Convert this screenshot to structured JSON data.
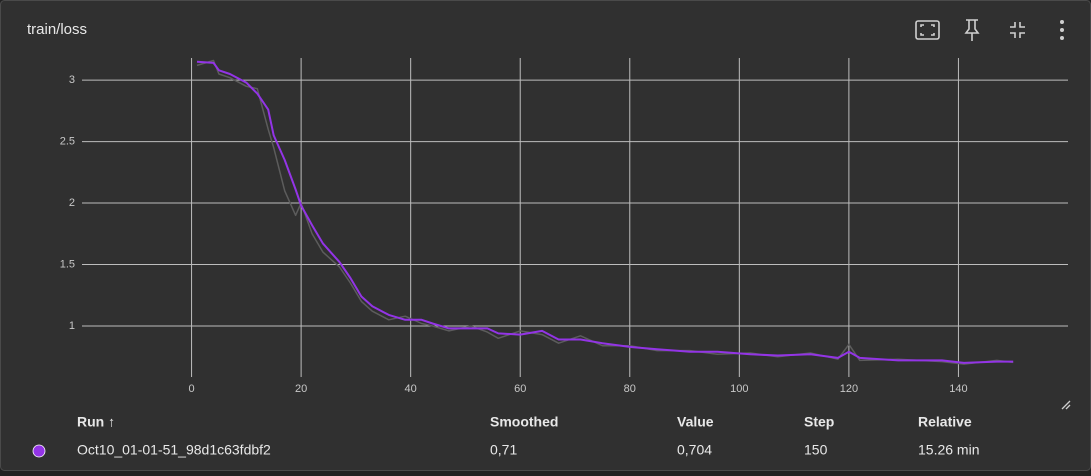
{
  "card_title": "train/loss",
  "chart_data": {
    "type": "line",
    "x": [
      1,
      4,
      5,
      7,
      10,
      12,
      14,
      15,
      17,
      19,
      20,
      22,
      24,
      27,
      29,
      31,
      33,
      36,
      39,
      42,
      44,
      47,
      51,
      54,
      56,
      60,
      64,
      67,
      71,
      75,
      80,
      85,
      91,
      96,
      102,
      107,
      113,
      118,
      120,
      122,
      129,
      137,
      141,
      147,
      150
    ],
    "series": [
      {
        "color": "#5c5c5c",
        "values": [
          3.12,
          3.16,
          3.05,
          3.02,
          2.95,
          2.93,
          2.6,
          2.45,
          2.1,
          1.9,
          2.0,
          1.75,
          1.6,
          1.48,
          1.35,
          1.2,
          1.12,
          1.05,
          1.08,
          1.02,
          1.0,
          0.96,
          1.0,
          0.95,
          0.9,
          0.96,
          0.93,
          0.86,
          0.92,
          0.84,
          0.84,
          0.8,
          0.8,
          0.77,
          0.78,
          0.75,
          0.78,
          0.73,
          0.85,
          0.72,
          0.73,
          0.71,
          0.69,
          0.72,
          0.704
        ]
      },
      {
        "color": "#9334e6",
        "values": [
          3.15,
          3.14,
          3.08,
          3.05,
          2.98,
          2.89,
          2.76,
          2.55,
          2.35,
          2.11,
          1.98,
          1.82,
          1.67,
          1.52,
          1.39,
          1.24,
          1.16,
          1.09,
          1.05,
          1.05,
          1.02,
          0.98,
          0.98,
          0.98,
          0.94,
          0.93,
          0.96,
          0.89,
          0.89,
          0.86,
          0.83,
          0.81,
          0.79,
          0.79,
          0.77,
          0.76,
          0.77,
          0.74,
          0.79,
          0.74,
          0.72,
          0.72,
          0.7,
          0.71,
          0.71
        ]
      }
    ],
    "xlim": [
      -20,
      160
    ],
    "xticks": [
      0,
      20,
      40,
      60,
      80,
      100,
      120,
      140
    ],
    "ylim": [
      0.585,
      3.18
    ],
    "yticks": [
      1,
      1.5,
      2,
      2.5,
      3
    ],
    "grid": true
  },
  "table": {
    "headers": [
      "Run ↑",
      "Smoothed",
      "Value",
      "Step",
      "Relative"
    ],
    "rows": [
      [
        "Oct10_01-01-51_98d1c63fdbf2",
        "0,71",
        "0,704",
        "150",
        "15.26 min"
      ]
    ],
    "run_color": "#9334e6"
  }
}
